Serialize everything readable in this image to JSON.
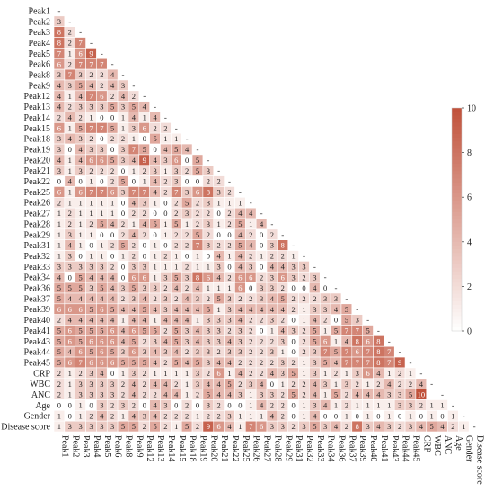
{
  "chart_data": {
    "type": "heatmap",
    "variant": "lower-triangular correlation matrix",
    "labels": [
      "Peak1",
      "Peak2",
      "Peak3",
      "Peak4",
      "Peak5",
      "Peak6",
      "Peak8",
      "Peak9",
      "Peak12",
      "Peak13",
      "Peak14",
      "Peak15",
      "Peak18",
      "Peak19",
      "Peak20",
      "Peak21",
      "Peak22",
      "Peak25",
      "Peak26",
      "Peak27",
      "Peak28",
      "Peak29",
      "Peak31",
      "Peak32",
      "Peak33",
      "Peak34",
      "Peak36",
      "Peak37",
      "Peak39",
      "Peak40",
      "Peak41",
      "Peak43",
      "Peak44",
      "Peak45",
      "CRP",
      "WBC",
      "ANC",
      "Age",
      "Gender",
      "Disease score"
    ],
    "rows": [
      [],
      [
        3
      ],
      [
        8,
        2
      ],
      [
        8,
        2,
        7
      ],
      [
        7,
        1,
        6,
        9
      ],
      [
        6,
        2,
        7,
        7,
        7
      ],
      [
        3,
        7,
        3,
        2,
        2,
        4
      ],
      [
        4,
        3,
        5,
        4,
        2,
        4,
        3
      ],
      [
        4,
        1,
        4,
        7,
        6,
        2,
        4,
        2
      ],
      [
        4,
        2,
        3,
        3,
        3,
        5,
        3,
        5,
        4
      ],
      [
        2,
        4,
        2,
        1,
        0,
        0,
        1,
        4,
        1,
        4
      ],
      [
        6,
        1,
        5,
        7,
        7,
        5,
        1,
        3,
        6,
        2,
        2
      ],
      [
        3,
        4,
        3,
        2,
        0,
        2,
        2,
        1,
        0,
        5,
        1,
        1
      ],
      [
        3,
        0,
        4,
        3,
        3,
        0,
        3,
        7,
        5,
        0,
        4,
        5,
        4
      ],
      [
        4,
        1,
        4,
        6,
        6,
        5,
        3,
        4,
        9,
        4,
        3,
        6,
        0,
        5
      ],
      [
        3,
        1,
        3,
        2,
        2,
        2,
        0,
        1,
        2,
        3,
        1,
        3,
        2,
        5,
        3
      ],
      [
        0,
        4,
        0,
        1,
        0,
        2,
        5,
        0,
        1,
        4,
        2,
        3,
        0,
        0,
        2,
        2
      ],
      [
        6,
        1,
        6,
        7,
        7,
        6,
        3,
        7,
        7,
        4,
        2,
        7,
        3,
        6,
        8,
        3,
        2
      ],
      [
        2,
        1,
        1,
        1,
        1,
        1,
        0,
        4,
        3,
        1,
        0,
        2,
        5,
        2,
        3,
        1,
        1,
        1
      ],
      [
        1,
        2,
        1,
        1,
        1,
        1,
        0,
        2,
        2,
        0,
        0,
        2,
        3,
        2,
        2,
        0,
        2,
        4,
        4
      ],
      [
        1,
        2,
        1,
        2,
        5,
        4,
        2,
        1,
        4,
        5,
        1,
        5,
        1,
        2,
        3,
        1,
        2,
        5,
        1,
        4
      ],
      [
        1,
        3,
        1,
        1,
        0,
        0,
        2,
        4,
        2,
        0,
        1,
        2,
        2,
        5,
        2,
        0,
        0,
        4,
        2,
        0,
        2
      ],
      [
        1,
        4,
        1,
        0,
        1,
        2,
        5,
        2,
        0,
        1,
        0,
        2,
        2,
        7,
        3,
        2,
        2,
        5,
        4,
        0,
        3,
        8
      ],
      [
        1,
        3,
        0,
        1,
        1,
        0,
        1,
        2,
        0,
        1,
        2,
        1,
        0,
        1,
        0,
        4,
        1,
        4,
        2,
        1,
        2,
        2,
        1
      ],
      [
        3,
        3,
        3,
        3,
        3,
        2,
        0,
        3,
        3,
        1,
        1,
        1,
        2,
        1,
        1,
        3,
        0,
        4,
        3,
        0,
        4,
        4,
        3,
        3
      ],
      [
        4,
        0,
        5,
        4,
        4,
        4,
        0,
        6,
        6,
        1,
        3,
        5,
        3,
        8,
        6,
        4,
        2,
        6,
        6,
        2,
        3,
        6,
        3,
        2,
        3
      ],
      [
        5,
        5,
        5,
        3,
        5,
        4,
        3,
        5,
        3,
        3,
        2,
        4,
        2,
        4,
        1,
        1,
        1,
        6,
        0,
        3,
        3,
        2,
        0,
        0,
        4,
        0
      ],
      [
        5,
        4,
        4,
        4,
        4,
        4,
        2,
        3,
        4,
        2,
        3,
        2,
        4,
        3,
        2,
        5,
        3,
        2,
        2,
        3,
        4,
        5,
        2,
        2,
        2,
        3,
        3
      ],
      [
        6,
        6,
        6,
        5,
        6,
        5,
        4,
        4,
        5,
        4,
        3,
        4,
        4,
        4,
        5,
        1,
        3,
        4,
        4,
        4,
        4,
        4,
        2,
        1,
        3,
        3,
        4,
        5
      ],
      [
        2,
        4,
        4,
        4,
        4,
        4,
        1,
        4,
        4,
        1,
        4,
        4,
        4,
        1,
        3,
        3,
        3,
        4,
        2,
        2,
        3,
        2,
        0,
        1,
        4,
        2,
        0,
        5,
        3
      ],
      [
        5,
        6,
        5,
        5,
        5,
        6,
        4,
        6,
        5,
        5,
        2,
        5,
        3,
        4,
        3,
        3,
        2,
        3,
        2,
        0,
        1,
        4,
        3,
        2,
        5,
        1,
        5,
        7,
        7,
        5
      ],
      [
        5,
        6,
        5,
        6,
        6,
        6,
        4,
        5,
        2,
        3,
        4,
        5,
        3,
        4,
        3,
        3,
        4,
        3,
        2,
        2,
        2,
        3,
        0,
        2,
        5,
        6,
        1,
        4,
        8,
        6,
        8
      ],
      [
        5,
        4,
        6,
        5,
        6,
        5,
        3,
        6,
        3,
        4,
        3,
        4,
        2,
        3,
        3,
        2,
        3,
        3,
        2,
        2,
        3,
        1,
        0,
        2,
        3,
        7,
        5,
        7,
        6,
        7,
        8,
        7
      ],
      [
        5,
        6,
        7,
        6,
        6,
        6,
        5,
        5,
        5,
        4,
        2,
        5,
        4,
        5,
        3,
        4,
        4,
        2,
        2,
        2,
        2,
        3,
        2,
        1,
        3,
        5,
        4,
        7,
        7,
        7,
        8,
        7,
        9
      ],
      [
        2,
        1,
        2,
        3,
        4,
        0,
        1,
        3,
        2,
        1,
        1,
        1,
        1,
        3,
        2,
        6,
        1,
        4,
        2,
        2,
        4,
        3,
        5,
        1,
        3,
        1,
        2,
        1,
        3,
        6,
        4,
        1,
        2,
        1
      ],
      [
        2,
        1,
        3,
        3,
        3,
        3,
        2,
        4,
        2,
        4,
        4,
        2,
        1,
        3,
        4,
        4,
        5,
        2,
        3,
        4,
        0,
        1,
        2,
        2,
        4,
        3,
        1,
        3,
        2,
        1,
        2,
        4,
        2,
        2,
        4
      ],
      [
        2,
        1,
        3,
        3,
        3,
        3,
        2,
        4,
        2,
        2,
        4,
        4,
        1,
        2,
        5,
        4,
        4,
        3,
        1,
        3,
        3,
        2,
        5,
        2,
        4,
        1,
        5,
        2,
        4,
        4,
        4,
        3,
        3,
        5,
        10
      ],
      [
        0,
        0,
        1,
        0,
        3,
        2,
        3,
        2,
        0,
        4,
        3,
        0,
        2,
        0,
        3,
        2,
        0,
        0,
        1,
        4,
        2,
        2,
        0,
        1,
        3,
        4,
        1,
        2,
        1,
        1,
        1,
        1,
        3,
        3,
        2,
        1,
        1
      ],
      [
        1,
        0,
        1,
        2,
        4,
        2,
        1,
        4,
        3,
        4,
        2,
        2,
        2,
        1,
        2,
        2,
        3,
        1,
        1,
        1,
        4,
        2,
        0,
        1,
        4,
        0,
        0,
        1,
        0,
        1,
        0,
        1,
        0,
        1,
        0,
        1,
        0,
        1
      ],
      [
        1,
        3,
        3,
        3,
        3,
        3,
        5,
        5,
        2,
        5,
        2,
        1,
        5,
        2,
        9,
        6,
        4,
        1,
        7,
        6,
        3,
        3,
        2,
        3,
        5,
        3,
        4,
        2,
        8,
        3,
        4,
        3,
        2,
        3,
        4,
        5,
        4,
        2,
        1
      ]
    ],
    "colorbar": {
      "min": 0,
      "max": 10,
      "ticks": [
        0,
        2,
        4,
        6,
        8,
        10
      ]
    },
    "colors": {
      "low": "#ffffff",
      "high": "#c0513a",
      "text_light": "#ffffff",
      "text_dark": "#222222"
    },
    "diagonal_marker": "-"
  }
}
